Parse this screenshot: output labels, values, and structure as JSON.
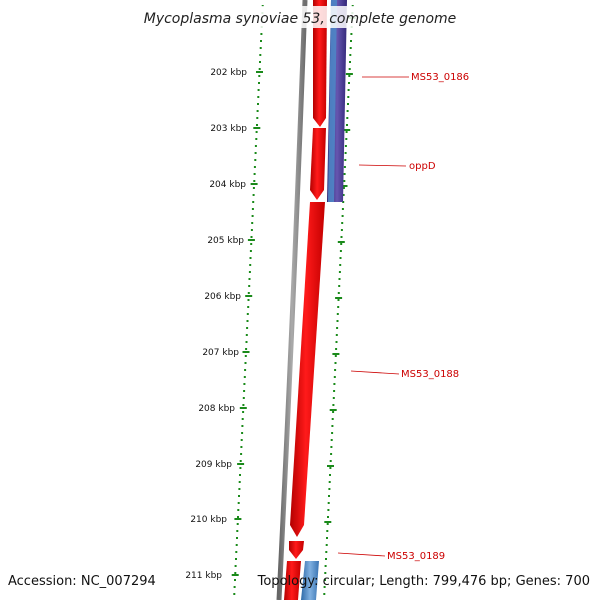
{
  "title": "Mycoplasma synoviae 53, complete genome",
  "ticks": [
    "202 kbp",
    "203 kbp",
    "204 kbp",
    "205 kbp",
    "206 kbp",
    "207 kbp",
    "208 kbp",
    "209 kbp",
    "210 kbp",
    "211 kbp"
  ],
  "genes": [
    {
      "label": "MS53_0186",
      "strand": "forward",
      "color": "#ee0000"
    },
    {
      "label": "oppD",
      "strand": "forward",
      "color": "#ee0000"
    },
    {
      "label": "MS53_0188",
      "strand": "forward",
      "color": "#ee0000"
    },
    {
      "label": "MS53_0189",
      "strand": "forward",
      "color": "#ee0000"
    }
  ],
  "colors": {
    "backbone": "#8a8a8a",
    "forward_cds": "#ee0000",
    "blue_track": "#4f86c6",
    "purple_track": "#4b3a8c",
    "ticks": "#1a8a1a",
    "gene_label": "#cc0000"
  },
  "footer": {
    "accession_label": "Accession:",
    "accession": "NC_007294",
    "topology_label": "Topology:",
    "topology": "circular",
    "length_label": "Length:",
    "length": "799,476 bp",
    "genes_label": "Genes:",
    "genes": "700"
  }
}
